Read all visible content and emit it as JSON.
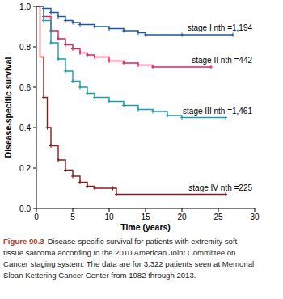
{
  "chart_data": {
    "type": "line",
    "x_label": "Time (years)",
    "y_label": "Disease-specific survival",
    "xlim": [
      0,
      30
    ],
    "xticks": [
      0,
      5,
      10,
      15,
      20,
      25,
      30
    ],
    "ylim": [
      0,
      1
    ],
    "yticks": [
      {
        "value": 0,
        "label": "0.0"
      },
      {
        "value": 0.2,
        "label": "0.2"
      },
      {
        "value": 0.4,
        "label": "0.4"
      },
      {
        "value": 0.6,
        "label": "0.6"
      },
      {
        "value": 0.8,
        "label": "0.8"
      },
      {
        "value": 1,
        "label": "1.0"
      }
    ],
    "line_style": "step",
    "marker": "plus",
    "series": [
      {
        "name": "stage I nth =1,194",
        "color": "#1c58a8",
        "x": [
          0,
          1,
          2,
          3,
          4,
          5,
          6,
          8,
          10,
          12,
          14,
          15,
          20,
          27
        ],
        "values": [
          1.0,
          0.99,
          0.97,
          0.95,
          0.93,
          0.92,
          0.91,
          0.9,
          0.89,
          0.88,
          0.87,
          0.86,
          0.86,
          0.86
        ]
      },
      {
        "name": "stage II nth =442",
        "color": "#e0245e",
        "x": [
          0,
          1,
          2,
          3,
          4,
          5,
          6,
          7,
          8,
          10,
          12,
          14,
          16,
          24
        ],
        "values": [
          1.0,
          0.95,
          0.88,
          0.84,
          0.81,
          0.79,
          0.77,
          0.76,
          0.75,
          0.73,
          0.72,
          0.71,
          0.7,
          0.7
        ]
      },
      {
        "name": "stage III nth =1,461",
        "color": "#1a9db0",
        "x": [
          0,
          1,
          2,
          3,
          4,
          5,
          6,
          7,
          8,
          10,
          12,
          14,
          16,
          18,
          20,
          26
        ],
        "values": [
          1.0,
          0.93,
          0.82,
          0.74,
          0.68,
          0.63,
          0.6,
          0.57,
          0.55,
          0.53,
          0.51,
          0.49,
          0.48,
          0.46,
          0.45,
          0.45
        ]
      },
      {
        "name": "stage IV nth =225",
        "color": "#8b1c1c",
        "x": [
          0,
          0.5,
          1,
          1.5,
          2,
          3,
          4,
          5,
          6,
          7,
          8,
          10.5,
          11,
          26
        ],
        "values": [
          1.0,
          0.75,
          0.55,
          0.4,
          0.31,
          0.24,
          0.19,
          0.16,
          0.13,
          0.11,
          0.1,
          0.1,
          0.07,
          0.07
        ]
      }
    ],
    "caption": {
      "label": "Figure 90.3",
      "lines": [
        "Disease-specific survival for patients with extremity soft",
        "tissue sarcoma according to the 2010 American Joint Committee on",
        "Cancer staging system. The data are for 3,322 patients seen at Memorial",
        "Sloan Kettering Cancer Center from 1982 through 2013."
      ]
    }
  }
}
